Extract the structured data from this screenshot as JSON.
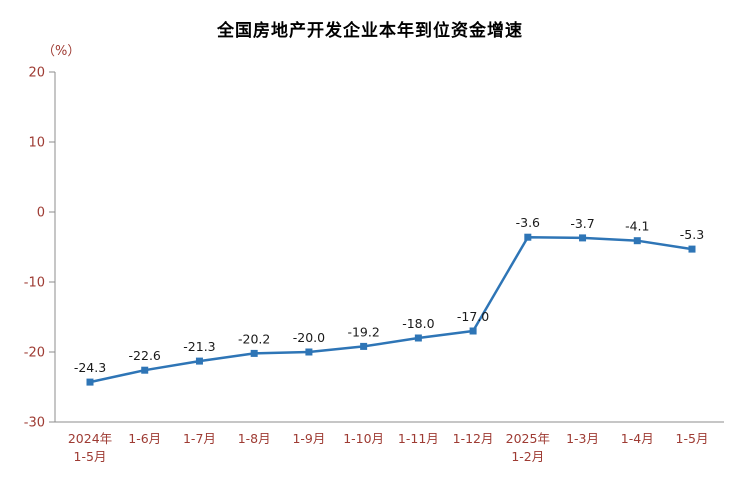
{
  "chart_data": {
    "type": "line",
    "title": "全国房地产开发企业本年到位资金增速",
    "unit_label": "（%）",
    "categories": [
      "2024年\n1-5月",
      "1-6月",
      "1-7月",
      "1-8月",
      "1-9月",
      "1-10月",
      "1-11月",
      "1-12月",
      "2025年\n1-2月",
      "1-3月",
      "1-4月",
      "1-5月"
    ],
    "values": [
      -24.3,
      -22.6,
      -21.3,
      -20.2,
      -20.0,
      -19.2,
      -18.0,
      -17.0,
      -3.6,
      -3.7,
      -4.1,
      -5.3
    ],
    "value_labels": [
      "-24.3",
      "-22.6",
      "-21.3",
      "-20.2",
      "-20.0",
      "-19.2",
      "-18.0",
      "-17.0",
      "-3.6",
      "-3.7",
      "-4.1",
      "-5.3"
    ],
    "xlabel": "",
    "ylabel": "（%）",
    "ylim": [
      -30,
      20
    ],
    "yticks": [
      20,
      10,
      0,
      -10,
      -20,
      -30
    ],
    "grid": false,
    "legend": "none",
    "marker": "square",
    "colors": {
      "line": "#2E75B6",
      "marker": "#2E75B6",
      "axis_line": "#8C8C8C",
      "axis_labels": "#9E3B33",
      "data_labels": "#1A1A1A",
      "title": "#000000"
    }
  }
}
